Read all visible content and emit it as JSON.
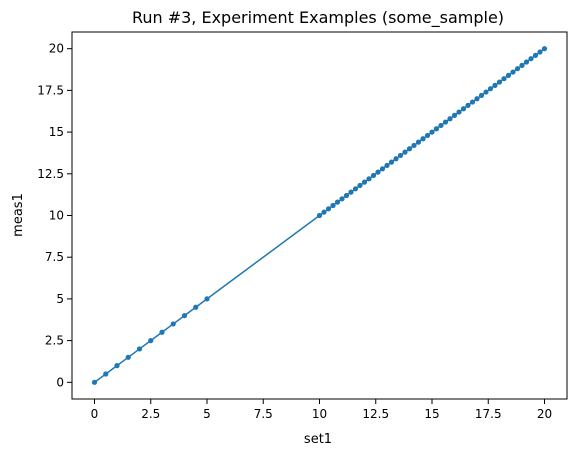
{
  "chart_data": {
    "type": "line",
    "title": "Run #3, Experiment Examples (some_sample)",
    "xlabel": "set1",
    "ylabel": "meas1",
    "xlim": [
      -1,
      21
    ],
    "ylim": [
      -1,
      21
    ],
    "xticks": [
      0,
      2.5,
      5,
      7.5,
      10,
      12.5,
      15,
      17.5,
      20
    ],
    "yticks": [
      0,
      2.5,
      5,
      7.5,
      10,
      12.5,
      15,
      17.5,
      20
    ],
    "xtick_labels": [
      "0",
      "2.5",
      "5",
      "7.5",
      "10",
      "12.5",
      "15",
      "17.5",
      "20"
    ],
    "ytick_labels": [
      "0",
      "2.5",
      "5",
      "7.5",
      "10",
      "12.5",
      "15",
      "17.5",
      "20"
    ],
    "grid": false,
    "series": [
      {
        "color": "#1f77b4",
        "marker": "circle",
        "x": [
          0,
          0.5,
          1,
          1.5,
          2,
          2.5,
          3,
          3.5,
          4,
          4.5,
          5,
          10,
          10.2,
          10.4,
          10.6,
          10.8,
          11,
          11.2,
          11.4,
          11.6,
          11.8,
          12,
          12.2,
          12.4,
          12.6,
          12.8,
          13,
          13.2,
          13.4,
          13.6,
          13.8,
          14,
          14.2,
          14.4,
          14.6,
          14.8,
          15,
          15.2,
          15.4,
          15.6,
          15.8,
          16,
          16.2,
          16.4,
          16.6,
          16.8,
          17,
          17.2,
          17.4,
          17.6,
          17.8,
          18,
          18.2,
          18.4,
          18.6,
          18.8,
          19,
          19.2,
          19.4,
          19.6,
          19.8,
          20
        ],
        "y": [
          0,
          0.5,
          1,
          1.5,
          2,
          2.5,
          3,
          3.5,
          4,
          4.5,
          5,
          10,
          10.2,
          10.4,
          10.6,
          10.8,
          11,
          11.2,
          11.4,
          11.6,
          11.8,
          12,
          12.2,
          12.4,
          12.6,
          12.8,
          13,
          13.2,
          13.4,
          13.6,
          13.8,
          14,
          14.2,
          14.4,
          14.6,
          14.8,
          15,
          15.2,
          15.4,
          15.6,
          15.8,
          16,
          16.2,
          16.4,
          16.6,
          16.8,
          17,
          17.2,
          17.4,
          17.6,
          17.8,
          18,
          18.2,
          18.4,
          18.6,
          18.8,
          19,
          19.2,
          19.4,
          19.6,
          19.8,
          20
        ]
      }
    ]
  }
}
